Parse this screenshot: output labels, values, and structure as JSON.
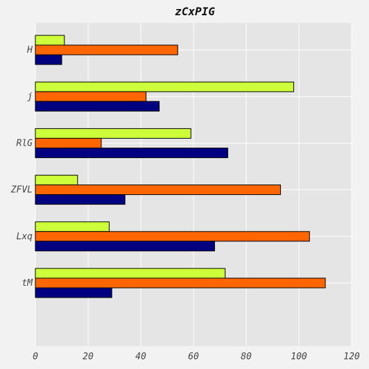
{
  "chart_data": {
    "type": "bar",
    "orientation": "horizontal",
    "title": "zCxPIG",
    "xlabel": "",
    "ylabel": "",
    "categories": [
      "H",
      "j",
      "RlG",
      "ZFVL",
      "Lxq",
      "tM"
    ],
    "series": [
      {
        "color": "#cdff3a",
        "values": [
          11,
          98,
          59,
          16,
          28,
          72
        ]
      },
      {
        "color": "#ff6600",
        "values": [
          54,
          42,
          25,
          93,
          104,
          110
        ]
      },
      {
        "color": "#000080",
        "values": [
          10,
          47,
          73,
          34,
          68,
          29
        ]
      }
    ],
    "xlim": [
      0,
      120
    ],
    "xticks": [
      0,
      20,
      40,
      60,
      80,
      100,
      120
    ],
    "grid": true,
    "legend": "none"
  },
  "colors": {
    "background": "#f2f2f2",
    "plot_background": "#e5e5e5",
    "grid": "#ffffff"
  }
}
